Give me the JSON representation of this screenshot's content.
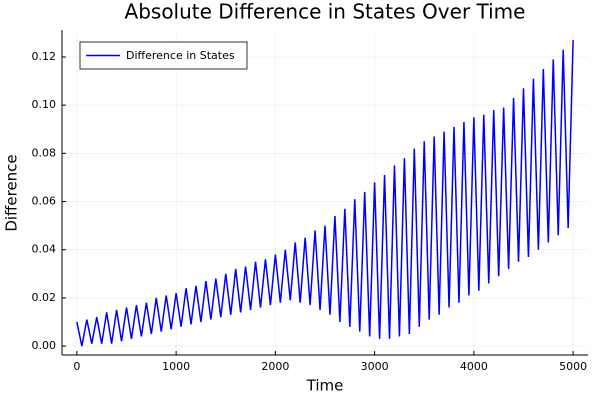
{
  "chart_data": {
    "type": "line",
    "title": "Absolute Difference in States Over Time",
    "x_label": "Time",
    "y_label": "Difference",
    "x": [
      0,
      50,
      100,
      150,
      200,
      250,
      300,
      350,
      400,
      450,
      500,
      550,
      600,
      650,
      700,
      750,
      800,
      850,
      900,
      950,
      1000,
      1050,
      1100,
      1150,
      1200,
      1250,
      1300,
      1350,
      1400,
      1450,
      1500,
      1550,
      1600,
      1650,
      1700,
      1750,
      1800,
      1850,
      1900,
      1950,
      2000,
      2050,
      2100,
      2150,
      2200,
      2250,
      2300,
      2350,
      2400,
      2450,
      2500,
      2550,
      2600,
      2650,
      2700,
      2750,
      2800,
      2850,
      2900,
      2950,
      3000,
      3050,
      3100,
      3150,
      3200,
      3250,
      3300,
      3350,
      3400,
      3450,
      3500,
      3550,
      3600,
      3650,
      3700,
      3750,
      3800,
      3850,
      3900,
      3950,
      4000,
      4050,
      4100,
      4150,
      4200,
      4250,
      4300,
      4350,
      4400,
      4450,
      4500,
      4550,
      4600,
      4650,
      4700,
      4750,
      4800,
      4850,
      4900,
      4950,
      5000
    ],
    "series": [
      {
        "name": "Difference in States",
        "color": "#0000ff",
        "values": [
          0.01,
          0.0,
          0.011,
          0.001,
          0.012,
          0.001,
          0.014,
          0.001,
          0.015,
          0.002,
          0.016,
          0.003,
          0.017,
          0.004,
          0.018,
          0.005,
          0.02,
          0.006,
          0.021,
          0.007,
          0.022,
          0.008,
          0.024,
          0.009,
          0.025,
          0.01,
          0.027,
          0.011,
          0.028,
          0.012,
          0.03,
          0.013,
          0.032,
          0.014,
          0.033,
          0.015,
          0.035,
          0.016,
          0.036,
          0.017,
          0.038,
          0.018,
          0.04,
          0.019,
          0.043,
          0.018,
          0.045,
          0.017,
          0.048,
          0.015,
          0.05,
          0.013,
          0.054,
          0.01,
          0.057,
          0.008,
          0.061,
          0.006,
          0.064,
          0.004,
          0.068,
          0.003,
          0.071,
          0.003,
          0.075,
          0.004,
          0.078,
          0.005,
          0.082,
          0.008,
          0.085,
          0.011,
          0.087,
          0.013,
          0.089,
          0.016,
          0.091,
          0.018,
          0.093,
          0.021,
          0.095,
          0.023,
          0.096,
          0.026,
          0.098,
          0.029,
          0.099,
          0.032,
          0.103,
          0.035,
          0.107,
          0.037,
          0.111,
          0.04,
          0.115,
          0.043,
          0.119,
          0.046,
          0.123,
          0.049,
          0.127
        ]
      }
    ],
    "xlim": [
      -150,
      5150
    ],
    "xticks": [
      0,
      1000,
      2000,
      3000,
      4000,
      5000
    ],
    "ylim": [
      -0.0037,
      0.1312
    ],
    "yticks": [
      {
        "value": 0,
        "label": "0.00"
      },
      {
        "value": 0.02,
        "label": "0.02"
      },
      {
        "value": 0.04,
        "label": "0.04"
      },
      {
        "value": 0.06,
        "label": "0.06"
      },
      {
        "value": 0.08,
        "label": "0.08"
      },
      {
        "value": 0.1,
        "label": "0.10"
      },
      {
        "value": 0.12,
        "label": "0.12"
      }
    ],
    "grid": true,
    "legend": "top-left"
  }
}
